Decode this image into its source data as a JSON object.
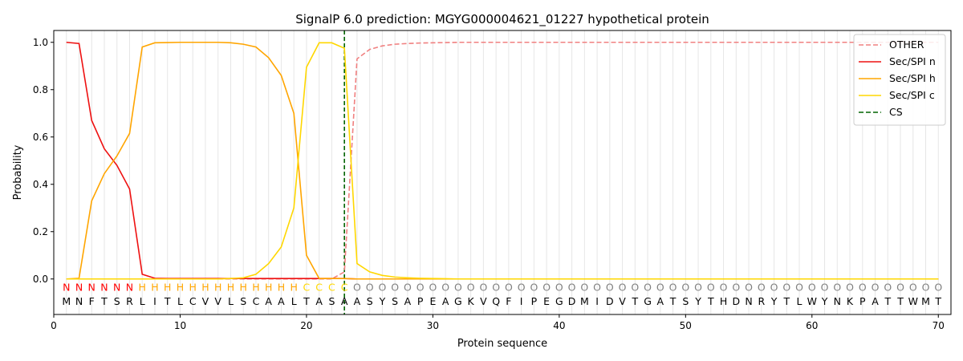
{
  "chart_data": {
    "type": "line",
    "title": "SignalP 6.0 prediction: MGYG000004621_01227 hypothetical protein",
    "xlabel": "Protein sequence",
    "ylabel": "Probability",
    "xlim": [
      0,
      71
    ],
    "ylim": [
      -0.15,
      1.05
    ],
    "x_ticks": [
      0,
      10,
      20,
      30,
      40,
      50,
      60,
      70
    ],
    "y_ticks": [
      0.0,
      0.2,
      0.4,
      0.6,
      0.8,
      1.0
    ],
    "y_tick_labels": [
      "0.0",
      "0.2",
      "0.4",
      "0.6",
      "0.8",
      "1.0"
    ],
    "grid": "vertical lines at each residue",
    "legend_position": "top-right",
    "sequence": [
      "M",
      "N",
      "F",
      "T",
      "S",
      "R",
      "L",
      "I",
      "T",
      "L",
      "C",
      "V",
      "V",
      "L",
      "S",
      "C",
      "A",
      "A",
      "L",
      "T",
      "A",
      "S",
      "A",
      "A",
      "S",
      "Y",
      "S",
      "A",
      "P",
      "E",
      "A",
      "G",
      "K",
      "V",
      "Q",
      "F",
      "I",
      "P",
      "E",
      "G",
      "D",
      "M",
      "I",
      "D",
      "V",
      "T",
      "G",
      "A",
      "T",
      "S",
      "Y",
      "T",
      "H",
      "D",
      "N",
      "R",
      "Y",
      "T",
      "L",
      "W",
      "Y",
      "N",
      "K",
      "P",
      "A",
      "T",
      "T",
      "W",
      "M",
      "T"
    ],
    "annotation": [
      "N",
      "N",
      "N",
      "N",
      "N",
      "N",
      "H",
      "H",
      "H",
      "H",
      "H",
      "H",
      "H",
      "H",
      "H",
      "H",
      "H",
      "H",
      "H",
      "C",
      "C",
      "C",
      "C",
      "O",
      "O",
      "O",
      "O",
      "O",
      "O",
      "O",
      "O",
      "O",
      "O",
      "O",
      "O",
      "O",
      "O",
      "O",
      "O",
      "O",
      "O",
      "O",
      "O",
      "O",
      "O",
      "O",
      "O",
      "O",
      "O",
      "O",
      "O",
      "O",
      "O",
      "O",
      "O",
      "O",
      "O",
      "O",
      "O",
      "O",
      "O",
      "O",
      "O",
      "O",
      "O",
      "O",
      "O",
      "O",
      "O",
      "O"
    ],
    "annotation_colors": {
      "N": "#ff0000",
      "H": "#ffa500",
      "C": "#ffd700",
      "O": "#808080"
    },
    "cleavage_site": 23,
    "series": [
      {
        "name": "OTHER",
        "color": "#f08080",
        "dash": "dashed",
        "x": [
          1,
          2,
          3,
          4,
          5,
          6,
          7,
          8,
          9,
          10,
          11,
          12,
          13,
          14,
          15,
          16,
          17,
          18,
          19,
          20,
          21,
          22,
          23,
          24,
          25,
          26,
          27,
          28,
          29,
          30,
          31,
          32,
          33,
          34,
          35,
          36,
          37,
          38,
          39,
          40,
          41,
          42,
          43,
          44,
          45,
          46,
          47,
          48,
          49,
          50,
          51,
          52,
          53,
          54,
          55,
          56,
          57,
          58,
          59,
          60,
          61,
          62,
          63,
          64,
          65,
          66,
          67,
          68,
          69,
          70
        ],
        "values": [
          0,
          0,
          0,
          0,
          0,
          0,
          0,
          0,
          0,
          0,
          0,
          0,
          0,
          0,
          0,
          0,
          0,
          0,
          0,
          0,
          0,
          0,
          0.03,
          0.93,
          0.97,
          0.985,
          0.992,
          0.995,
          0.997,
          0.998,
          0.999,
          1,
          1,
          1,
          1,
          1,
          1,
          1,
          1,
          1,
          1,
          1,
          1,
          1,
          1,
          1,
          1,
          1,
          1,
          1,
          1,
          1,
          1,
          1,
          1,
          1,
          1,
          1,
          1,
          1,
          1,
          1,
          1,
          1,
          1,
          1,
          1,
          1,
          1,
          1
        ]
      },
      {
        "name": "Sec/SPI n",
        "color": "#ee1111",
        "dash": "solid",
        "x": [
          1,
          2,
          3,
          4,
          5,
          6,
          7,
          8,
          9,
          10,
          11,
          12,
          13,
          14,
          15,
          16,
          17,
          18,
          19,
          20,
          21,
          22,
          23,
          24,
          25,
          26,
          27,
          28,
          29,
          30,
          31,
          32,
          33,
          34,
          35,
          36,
          37,
          38,
          39,
          40,
          41,
          42,
          43,
          44,
          45,
          46,
          47,
          48,
          49,
          50,
          51,
          52,
          53,
          54,
          55,
          56,
          57,
          58,
          59,
          60,
          61,
          62,
          63,
          64,
          65,
          66,
          67,
          68,
          69,
          70
        ],
        "values": [
          1.0,
          0.995,
          0.67,
          0.55,
          0.48,
          0.38,
          0.02,
          0.003,
          0.002,
          0.002,
          0.002,
          0.002,
          0.002,
          0.002,
          0.002,
          0.002,
          0.002,
          0.002,
          0.002,
          0.002,
          0.002,
          0.002,
          0.002,
          0,
          0,
          0,
          0,
          0,
          0,
          0,
          0,
          0,
          0,
          0,
          0,
          0,
          0,
          0,
          0,
          0,
          0,
          0,
          0,
          0,
          0,
          0,
          0,
          0,
          0,
          0,
          0,
          0,
          0,
          0,
          0,
          0,
          0,
          0,
          0,
          0,
          0,
          0,
          0,
          0,
          0,
          0,
          0,
          0,
          0,
          0
        ]
      },
      {
        "name": "Sec/SPI h",
        "color": "#ffa500",
        "dash": "solid",
        "x": [
          1,
          2,
          3,
          4,
          5,
          6,
          7,
          8,
          9,
          10,
          11,
          12,
          13,
          14,
          15,
          16,
          17,
          18,
          19,
          20,
          21,
          22,
          23,
          24,
          25,
          26,
          27,
          28,
          29,
          30,
          31,
          32,
          33,
          34,
          35,
          36,
          37,
          38,
          39,
          40,
          41,
          42,
          43,
          44,
          45,
          46,
          47,
          48,
          49,
          50,
          51,
          52,
          53,
          54,
          55,
          56,
          57,
          58,
          59,
          60,
          61,
          62,
          63,
          64,
          65,
          66,
          67,
          68,
          69,
          70
        ],
        "values": [
          0,
          0.003,
          0.33,
          0.445,
          0.52,
          0.615,
          0.98,
          0.998,
          0.999,
          1.0,
          1.0,
          1.0,
          1.0,
          0.998,
          0.992,
          0.98,
          0.935,
          0.86,
          0.7,
          0.1,
          0.002,
          0.002,
          0.002,
          0,
          0,
          0,
          0,
          0,
          0,
          0,
          0,
          0,
          0,
          0,
          0,
          0,
          0,
          0,
          0,
          0,
          0,
          0,
          0,
          0,
          0,
          0,
          0,
          0,
          0,
          0,
          0,
          0,
          0,
          0,
          0,
          0,
          0,
          0,
          0,
          0,
          0,
          0,
          0,
          0,
          0,
          0,
          0,
          0,
          0,
          0
        ]
      },
      {
        "name": "Sec/SPI c",
        "color": "#ffd700",
        "dash": "solid",
        "x": [
          1,
          2,
          3,
          4,
          5,
          6,
          7,
          8,
          9,
          10,
          11,
          12,
          13,
          14,
          15,
          16,
          17,
          18,
          19,
          20,
          21,
          22,
          23,
          24,
          25,
          26,
          27,
          28,
          29,
          30,
          31,
          32,
          33,
          34,
          35,
          36,
          37,
          38,
          39,
          40,
          41,
          42,
          43,
          44,
          45,
          46,
          47,
          48,
          49,
          50,
          51,
          52,
          53,
          54,
          55,
          56,
          57,
          58,
          59,
          60,
          61,
          62,
          63,
          64,
          65,
          66,
          67,
          68,
          69,
          70
        ],
        "values": [
          0,
          0,
          0,
          0,
          0,
          0,
          0,
          0,
          0,
          0,
          0,
          0,
          0,
          0.002,
          0.005,
          0.02,
          0.065,
          0.135,
          0.3,
          0.895,
          0.998,
          0.998,
          0.975,
          0.065,
          0.03,
          0.015,
          0.008,
          0.005,
          0.003,
          0.002,
          0.001,
          0,
          0,
          0,
          0,
          0,
          0,
          0,
          0,
          0,
          0,
          0,
          0,
          0,
          0,
          0,
          0,
          0,
          0,
          0,
          0,
          0,
          0,
          0,
          0,
          0,
          0,
          0,
          0,
          0,
          0,
          0,
          0,
          0,
          0,
          0,
          0,
          0,
          0,
          0
        ]
      }
    ],
    "legend": [
      {
        "label": "OTHER",
        "color": "#f08080",
        "dash": "dashed"
      },
      {
        "label": "Sec/SPI n",
        "color": "#ee1111",
        "dash": "solid"
      },
      {
        "label": "Sec/SPI h",
        "color": "#ffa500",
        "dash": "solid"
      },
      {
        "label": "Sec/SPI c",
        "color": "#ffd700",
        "dash": "solid"
      },
      {
        "label": "CS",
        "color": "#006400",
        "dash": "dashed"
      }
    ]
  }
}
